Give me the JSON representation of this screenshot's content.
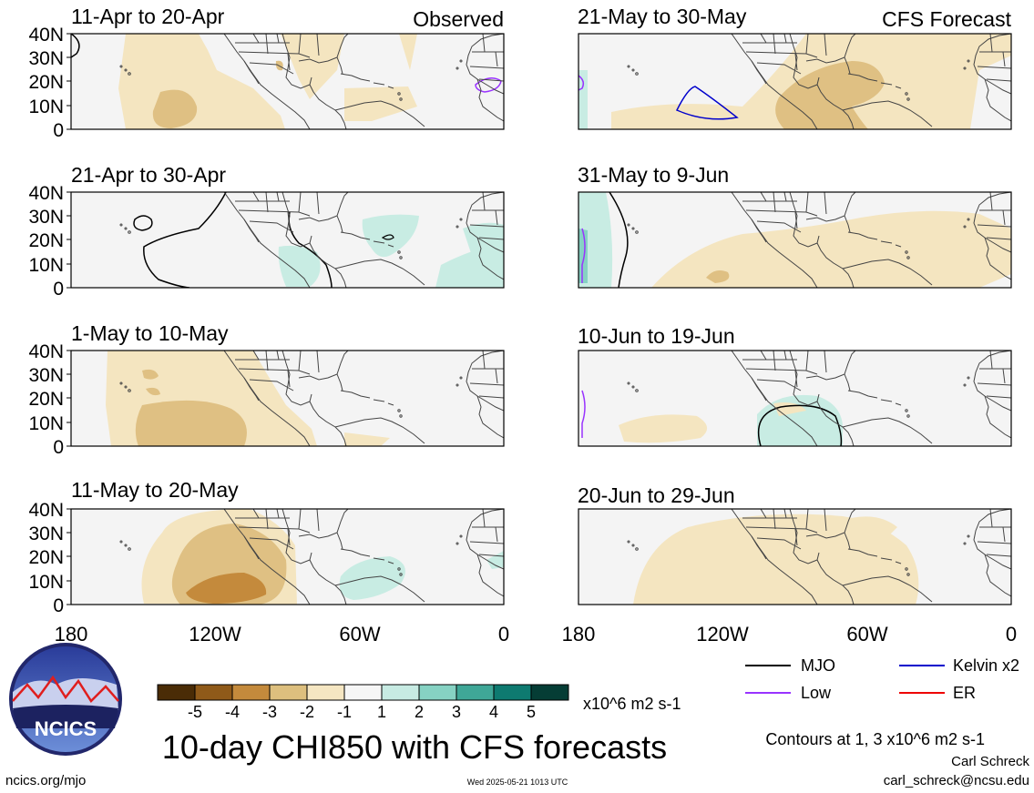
{
  "panels": [
    {
      "id": "obs1",
      "title": "11-Apr to 20-Apr",
      "tag": "Observed"
    },
    {
      "id": "obs2",
      "title": "21-Apr to 30-Apr",
      "tag": ""
    },
    {
      "id": "obs3",
      "title": "1-May to 10-May",
      "tag": ""
    },
    {
      "id": "obs4",
      "title": "11-May to 20-May",
      "tag": ""
    },
    {
      "id": "fc1",
      "title": "21-May to 30-May",
      "tag": "CFS Forecast"
    },
    {
      "id": "fc2",
      "title": "31-May to 9-Jun",
      "tag": ""
    },
    {
      "id": "fc3",
      "title": "10-Jun to 19-Jun",
      "tag": ""
    },
    {
      "id": "fc4",
      "title": "20-Jun to 29-Jun",
      "tag": ""
    }
  ],
  "lat_labels": [
    "40N",
    "30N",
    "20N",
    "10N",
    "0"
  ],
  "lon_labels": [
    "180",
    "120W",
    "60W",
    "0"
  ],
  "colorbar": {
    "labels": [
      "-5",
      "-4",
      "-3",
      "-2",
      "-1",
      "1",
      "2",
      "3",
      "4",
      "5"
    ],
    "units": "x10^6 m2 s-1",
    "colors": [
      "#4a2c06",
      "#8f5a19",
      "#c48a3c",
      "#ddbf7e",
      "#f5e6c2",
      "#f6f6f6",
      "#c7ebe3",
      "#86d2c3",
      "#3fa797",
      "#0e7a70",
      "#053d35"
    ]
  },
  "legend": [
    {
      "label": "MJO",
      "color": "#000000"
    },
    {
      "label": "Kelvin x2",
      "color": "#0000cc"
    },
    {
      "label": "Low",
      "color": "#9933ff"
    },
    {
      "label": "ER",
      "color": "#ee0000"
    }
  ],
  "contour_note": "Contours at 1, 3 x10^6 m2 s-1",
  "main_title": "10-day CHI850 with CFS forecasts",
  "logo_text": "NCICS",
  "footer": {
    "url": "ncics.org/mjo",
    "timestamp": "Wed 2025-05-21 1013 UTC",
    "author": "Carl Schreck",
    "email": "carl_schreck@ncsu.edu"
  }
}
